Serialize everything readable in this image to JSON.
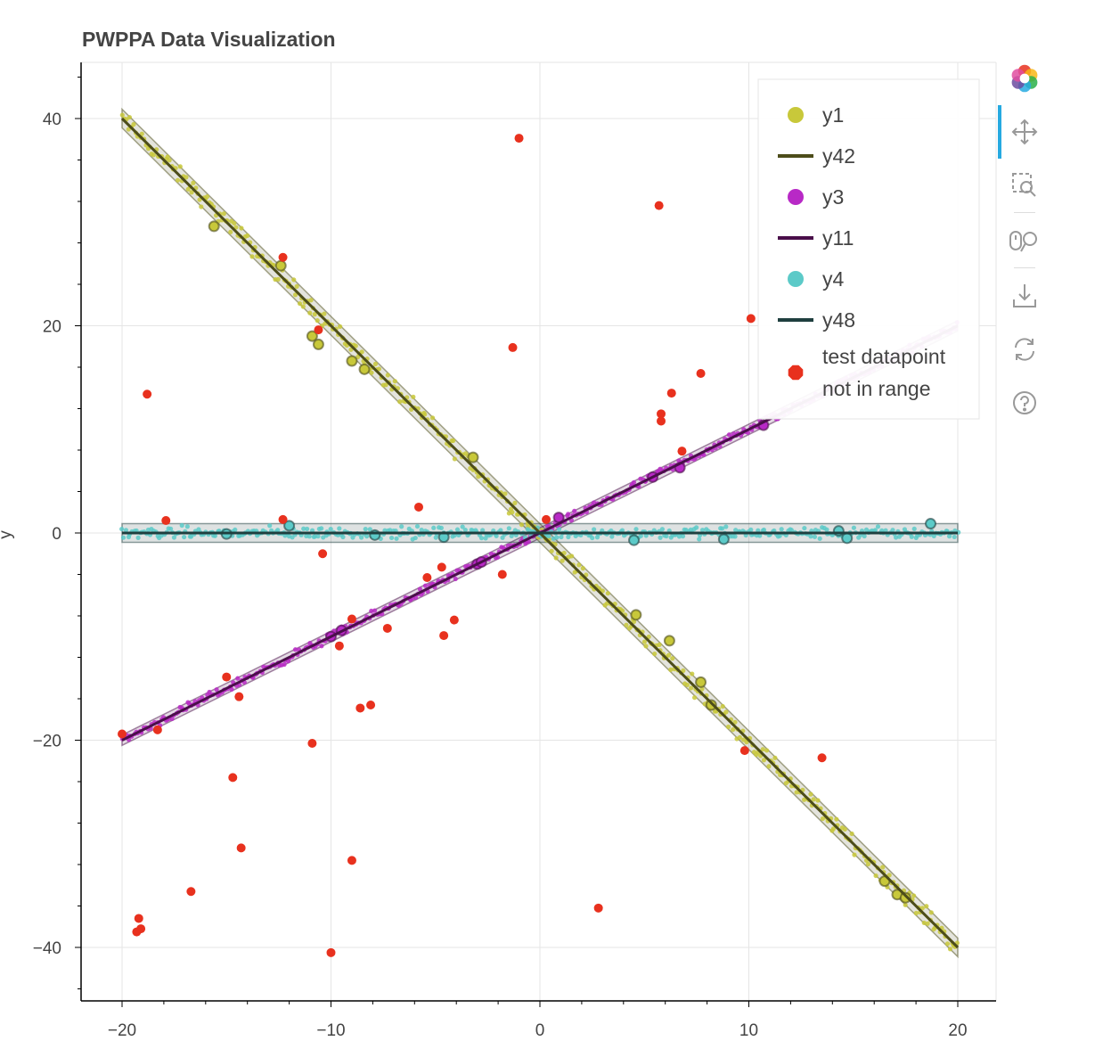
{
  "chart_data": {
    "type": "scatter",
    "title": "PWPPA Data Visualization",
    "xlabel": "",
    "ylabel": "y",
    "xlim": [
      -22,
      22
    ],
    "ylim": [
      -45.5,
      46
    ],
    "xticks": [
      -20,
      -10,
      0,
      10,
      20
    ],
    "xtick_labels": [
      "−20",
      "−10",
      "0",
      "10",
      "20"
    ],
    "yticks": [
      -40,
      -20,
      0,
      20,
      40
    ],
    "ytick_labels": [
      "−40",
      "−20",
      "0",
      "20",
      "40"
    ],
    "grid": true,
    "legend_position": "top-right",
    "series": [
      {
        "name": "y1",
        "kind": "scatter",
        "color": "#c8c83a",
        "trend": {
          "slope": -2,
          "intercept": 0,
          "x_range": [
            -20,
            20
          ],
          "noise": 0.6
        },
        "highlight_points": [
          [
            -15.6,
            29.6
          ],
          [
            -12.4,
            25.8
          ],
          [
            -10.9,
            19.0
          ],
          [
            -10.6,
            18.2
          ],
          [
            -9.0,
            16.6
          ],
          [
            -8.4,
            15.8
          ],
          [
            -3.2,
            7.3
          ],
          [
            4.6,
            -7.9
          ],
          [
            6.2,
            -10.4
          ],
          [
            7.7,
            -14.4
          ],
          [
            8.2,
            -16.6
          ],
          [
            16.5,
            -33.6
          ],
          [
            17.1,
            -34.9
          ],
          [
            17.5,
            -35.2
          ]
        ]
      },
      {
        "name": "y42",
        "kind": "line",
        "color": "#4d4d1a",
        "x": [
          -20,
          20
        ],
        "y": [
          40,
          -40
        ],
        "band": 0.9
      },
      {
        "name": "y3",
        "kind": "scatter",
        "color": "#b829c6",
        "trend": {
          "slope": 1,
          "intercept": 0,
          "x_range": [
            -20,
            20
          ],
          "noise": 0.3
        },
        "highlight_points": [
          [
            -10.0,
            -10.0
          ],
          [
            -9.5,
            -9.4
          ],
          [
            -3.0,
            -3.0
          ],
          [
            -2.8,
            -2.8
          ],
          [
            0.9,
            1.5
          ],
          [
            5.4,
            5.4
          ],
          [
            6.7,
            6.3
          ],
          [
            10.7,
            10.4
          ]
        ]
      },
      {
        "name": "y11",
        "kind": "line",
        "color": "#4a0f4a",
        "x": [
          -20,
          20
        ],
        "y": [
          -20,
          20
        ],
        "band": 0.5
      },
      {
        "name": "y4",
        "kind": "scatter",
        "color": "#5ccac8",
        "trend": {
          "slope": 0,
          "intercept": 0,
          "x_range": [
            -20,
            20
          ],
          "noise": 0.4
        },
        "highlight_points": [
          [
            -15.0,
            -0.1
          ],
          [
            -12.0,
            0.7
          ],
          [
            -7.9,
            -0.2
          ],
          [
            -4.6,
            -0.4
          ],
          [
            4.5,
            -0.7
          ],
          [
            8.8,
            -0.6
          ],
          [
            14.3,
            0.2
          ],
          [
            14.7,
            -0.5
          ],
          [
            18.7,
            0.9
          ]
        ]
      },
      {
        "name": "y48",
        "kind": "line",
        "color": "#1f3f3f",
        "x": [
          -20,
          20
        ],
        "y": [
          0,
          0
        ],
        "band": 0.9
      },
      {
        "name": "test datapoint not in range",
        "kind": "scatter",
        "color": "#e8311e",
        "points": [
          [
            -20.0,
            -19.4
          ],
          [
            -18.8,
            13.4
          ],
          [
            -18.3,
            -19.0
          ],
          [
            -17.9,
            1.2
          ],
          [
            -19.2,
            -37.2
          ],
          [
            -19.3,
            -38.5
          ],
          [
            -19.1,
            -38.2
          ],
          [
            -16.7,
            -34.6
          ],
          [
            -15.0,
            -13.9
          ],
          [
            -14.7,
            -23.6
          ],
          [
            -14.4,
            -15.8
          ],
          [
            -14.3,
            -30.4
          ],
          [
            -12.3,
            1.3
          ],
          [
            -12.3,
            26.6
          ],
          [
            -10.9,
            -20.3
          ],
          [
            -10.6,
            19.6
          ],
          [
            -10.4,
            -2.0
          ],
          [
            -10.0,
            -40.5
          ],
          [
            -9.6,
            -10.9
          ],
          [
            -9.0,
            -31.6
          ],
          [
            -9.0,
            -8.3
          ],
          [
            -8.6,
            -16.9
          ],
          [
            -8.1,
            -16.6
          ],
          [
            -7.3,
            -9.2
          ],
          [
            -5.8,
            2.5
          ],
          [
            -5.4,
            -4.3
          ],
          [
            -4.7,
            -3.3
          ],
          [
            -4.6,
            -9.9
          ],
          [
            -4.1,
            -8.4
          ],
          [
            -1.8,
            -4.0
          ],
          [
            -1.3,
            17.9
          ],
          [
            -1.0,
            38.1
          ],
          [
            0.3,
            1.3
          ],
          [
            2.8,
            -36.2
          ],
          [
            5.7,
            31.6
          ],
          [
            5.8,
            11.5
          ],
          [
            5.8,
            10.8
          ],
          [
            6.3,
            13.5
          ],
          [
            6.8,
            7.9
          ],
          [
            7.7,
            15.4
          ],
          [
            9.8,
            -21.0
          ],
          [
            10.1,
            20.7
          ],
          [
            13.5,
            -21.7
          ]
        ]
      }
    ]
  },
  "legend": {
    "items": [
      {
        "label": "y1",
        "symbol": "circle",
        "color": "#c8c83a"
      },
      {
        "label": "y42",
        "symbol": "line",
        "color": "#4d4d1a"
      },
      {
        "label": "y3",
        "symbol": "circle",
        "color": "#b829c6"
      },
      {
        "label": "y11",
        "symbol": "line",
        "color": "#4a0f4a"
      },
      {
        "label": "y4",
        "symbol": "circle",
        "color": "#5ccac8"
      },
      {
        "label": "y48",
        "symbol": "line",
        "color": "#1f3f3f"
      },
      {
        "label": [
          "test datapoint",
          "not in range"
        ],
        "symbol": "octagon",
        "color": "#e8311e"
      }
    ]
  },
  "toolbar": {
    "tools": [
      {
        "name": "bokeh-logo-icon",
        "interactable": true
      },
      {
        "name": "pan-icon",
        "interactable": true,
        "active": true
      },
      {
        "name": "box-zoom-icon",
        "interactable": true
      },
      {
        "name": "wheel-zoom-icon",
        "interactable": true
      },
      {
        "name": "save-icon",
        "interactable": true
      },
      {
        "name": "reset-icon",
        "interactable": true
      },
      {
        "name": "help-icon",
        "interactable": true
      }
    ]
  }
}
